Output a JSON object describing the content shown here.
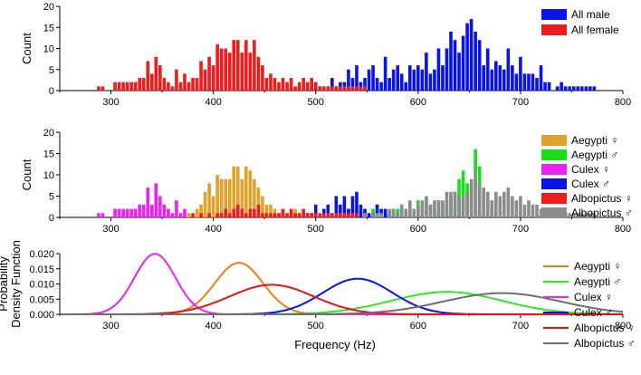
{
  "chart_data": [
    {
      "type": "bar",
      "panel": "top",
      "ylabel": "Count",
      "xlim": [
        250,
        800
      ],
      "ylim": [
        0,
        20
      ],
      "xticks": [
        "300",
        "400",
        "500",
        "600",
        "700",
        "800"
      ],
      "yticks": [
        "0",
        "5",
        "10",
        "15",
        "20"
      ],
      "legend_position": "top-right",
      "bin_width": 4,
      "series": [
        {
          "name": "All male",
          "color": "#0a14e6",
          "x": [
            500,
            504,
            512,
            516,
            520,
            524,
            528,
            532,
            536,
            540,
            544,
            548,
            552,
            556,
            560,
            564,
            568,
            572,
            576,
            580,
            584,
            588,
            592,
            596,
            600,
            604,
            608,
            612,
            616,
            620,
            624,
            628,
            632,
            636,
            640,
            644,
            648,
            652,
            656,
            660,
            664,
            668,
            672,
            676,
            680,
            684,
            688,
            692,
            696,
            700,
            704,
            708,
            712,
            716,
            720,
            724,
            728,
            736,
            740,
            744,
            748,
            752,
            756,
            760,
            764,
            768,
            772
          ],
          "values": [
            2,
            1,
            1,
            3,
            1,
            2,
            2,
            5,
            3,
            6,
            2,
            3,
            5,
            6,
            3,
            2,
            8,
            3,
            5,
            6,
            4,
            2,
            6,
            5,
            6,
            5,
            9,
            4,
            5,
            10,
            6,
            10,
            14,
            12,
            9,
            13,
            16,
            17,
            14,
            12,
            6,
            10,
            5,
            7,
            6,
            5,
            10,
            6,
            4,
            8,
            4,
            4,
            4,
            3,
            6,
            2,
            2,
            1,
            2,
            1,
            1,
            1,
            1,
            1,
            1,
            1,
            1
          ]
        },
        {
          "name": "All female",
          "color": "#f01c1c",
          "x": [
            288,
            292,
            304,
            308,
            312,
            316,
            320,
            324,
            328,
            332,
            336,
            340,
            344,
            348,
            352,
            356,
            360,
            364,
            368,
            372,
            376,
            380,
            384,
            388,
            392,
            396,
            400,
            404,
            408,
            412,
            416,
            420,
            424,
            428,
            432,
            436,
            440,
            444,
            448,
            452,
            456,
            460,
            464,
            468,
            472,
            476,
            480,
            484,
            488,
            492,
            496,
            500,
            504,
            508,
            512,
            516,
            520,
            524,
            528,
            532,
            536,
            540,
            544,
            548
          ],
          "values": [
            1,
            1,
            2,
            2,
            2,
            2,
            2,
            2,
            3,
            3,
            7,
            4,
            8,
            6,
            3,
            2,
            1,
            5,
            2,
            4,
            2,
            3,
            3,
            7,
            5,
            8,
            6,
            11,
            10,
            10,
            9,
            12,
            12,
            9,
            12,
            9,
            12,
            8,
            6,
            3,
            4,
            3,
            2,
            3,
            2,
            3,
            1,
            2,
            3,
            2,
            3,
            2,
            1,
            1,
            1,
            1,
            1,
            1,
            1,
            1,
            1,
            1,
            1,
            1
          ]
        }
      ]
    },
    {
      "type": "bar",
      "panel": "middle",
      "ylabel": "Count",
      "xlim": [
        250,
        800
      ],
      "ylim": [
        0,
        20
      ],
      "xticks": [
        "300",
        "400",
        "500",
        "600",
        "700",
        "800"
      ],
      "yticks": [
        "0",
        "5",
        "10",
        "15",
        "20"
      ],
      "legend_position": "right",
      "bin_width": 4,
      "series": [
        {
          "name": "Aegypti ♀",
          "color": "#e0a22a",
          "x": [
            372,
            376,
            384,
            388,
            392,
            396,
            400,
            404,
            408,
            412,
            416,
            420,
            424,
            428,
            432,
            436,
            440,
            444,
            448,
            452,
            456,
            460,
            464,
            468,
            472,
            476,
            480,
            484,
            488,
            492,
            496
          ],
          "values": [
            1,
            1,
            2,
            3,
            6,
            8,
            5,
            10,
            9,
            9,
            9,
            12,
            12,
            9,
            12,
            11,
            9,
            7,
            5,
            3,
            3,
            2,
            1,
            2,
            1,
            1,
            2,
            1,
            1,
            1,
            1
          ]
        },
        {
          "name": "Aegypti ♂",
          "color": "#18e018",
          "x": [
            500,
            512,
            520,
            528,
            532,
            536,
            540,
            548,
            552,
            556,
            560,
            568,
            572,
            576,
            580,
            584,
            588,
            592,
            600,
            604,
            608,
            612,
            616,
            620,
            624,
            628,
            632,
            636,
            640,
            644,
            648,
            652,
            656,
            660,
            664,
            668,
            672,
            676,
            680,
            688
          ],
          "values": [
            1,
            1,
            1,
            1,
            2,
            2,
            1,
            2,
            1,
            2,
            3,
            1,
            1,
            2,
            2,
            3,
            2,
            2,
            4,
            3,
            5,
            3,
            2,
            4,
            3,
            4,
            5,
            6,
            9,
            11,
            8,
            8,
            16,
            12,
            4,
            6,
            4,
            4,
            2,
            4
          ]
        },
        {
          "name": "Culex ♀",
          "color": "#f020f0",
          "x": [
            288,
            292,
            304,
            308,
            312,
            316,
            320,
            324,
            328,
            332,
            336,
            340,
            344,
            348,
            352,
            356,
            360,
            364,
            368,
            372
          ],
          "values": [
            1,
            1,
            2,
            2,
            2,
            2,
            2,
            2,
            3,
            3,
            7,
            3,
            8,
            5,
            3,
            2,
            1,
            4,
            1,
            2
          ]
        },
        {
          "name": "Culex ♂",
          "color": "#0a14e6",
          "x": [
            492,
            496,
            500,
            508,
            512,
            516,
            520,
            524,
            528,
            532,
            536,
            540,
            544,
            548,
            552,
            556,
            560,
            564,
            568,
            572,
            576,
            580,
            584
          ],
          "values": [
            1,
            1,
            3,
            2,
            3,
            1,
            5,
            3,
            5,
            2,
            5,
            6,
            3,
            2,
            1,
            1,
            3,
            2,
            2,
            1,
            2,
            1,
            1
          ]
        },
        {
          "name": "Albopictus ♀",
          "color": "#f01c1c",
          "x": [
            380,
            388,
            396,
            404,
            408,
            412,
            416,
            420,
            424,
            428,
            432,
            436,
            440,
            444,
            448,
            452,
            456,
            460,
            464,
            468,
            472,
            476,
            480,
            484,
            488,
            492,
            496,
            500,
            504,
            508,
            512,
            516,
            520,
            524,
            528,
            532,
            536,
            540,
            548
          ],
          "values": [
            1,
            1,
            1,
            1,
            1,
            2,
            1,
            2,
            3,
            2,
            1,
            2,
            2,
            3,
            1,
            1,
            1,
            1,
            1,
            2,
            1,
            2,
            1,
            1,
            2,
            1,
            1,
            1,
            1,
            1,
            1,
            1,
            1,
            1,
            1,
            1,
            1,
            1,
            1
          ]
        },
        {
          "name": "Albopictus ♂",
          "color": "#8c8c8c",
          "x": [
            548,
            556,
            560,
            564,
            572,
            576,
            580,
            584,
            588,
            592,
            596,
            600,
            604,
            608,
            612,
            616,
            620,
            624,
            628,
            632,
            636,
            640,
            644,
            648,
            652,
            656,
            660,
            664,
            668,
            672,
            676,
            680,
            684,
            688,
            692,
            696,
            700,
            704,
            708,
            712,
            716,
            720,
            724,
            728,
            736,
            740,
            744,
            748,
            752,
            756,
            760,
            764,
            768,
            772
          ],
          "values": [
            1,
            1,
            1,
            1,
            2,
            2,
            1,
            3,
            2,
            4,
            2,
            3,
            4,
            5,
            3,
            4,
            4,
            4,
            6,
            6,
            6,
            5,
            5,
            6,
            9,
            11,
            8,
            7,
            6,
            4,
            6,
            5,
            6,
            7,
            5,
            4,
            5,
            3,
            4,
            3,
            3,
            2,
            2,
            2,
            1,
            1,
            1,
            1,
            1,
            1,
            1,
            1,
            1,
            1
          ]
        }
      ]
    },
    {
      "type": "line",
      "panel": "bottom",
      "xlabel": "Frequency (Hz)",
      "ylabel": "Probability Density Function",
      "ylabel_lines": [
        "Probability",
        "Density Function"
      ],
      "xlim": [
        250,
        800
      ],
      "ylim": [
        0,
        0.02
      ],
      "xticks": [
        "300",
        "400",
        "500",
        "600",
        "700",
        "800"
      ],
      "yticks": [
        "0.000",
        "0.005",
        "0.010",
        "0.015",
        "0.020"
      ],
      "legend_position": "right",
      "series": [
        {
          "name": "Aegypti ♀",
          "color": "#f07d14",
          "mean": 425,
          "sd": 23.5
        },
        {
          "name": "Aegypti ♂",
          "color": "#2ce82c",
          "mean": 628,
          "sd": 54
        },
        {
          "name": "Culex ♀",
          "color": "#f020f0",
          "mean": 343,
          "sd": 20
        },
        {
          "name": "Culex ♂",
          "color": "#0a14e6",
          "mean": 541,
          "sd": 34
        },
        {
          "name": "Albopictus ♀",
          "color": "#e61414",
          "mean": 457,
          "sd": 41
        },
        {
          "name": "Albopictus ♂",
          "color": "#6e6e6e",
          "mean": 682,
          "sd": 57
        }
      ]
    }
  ]
}
